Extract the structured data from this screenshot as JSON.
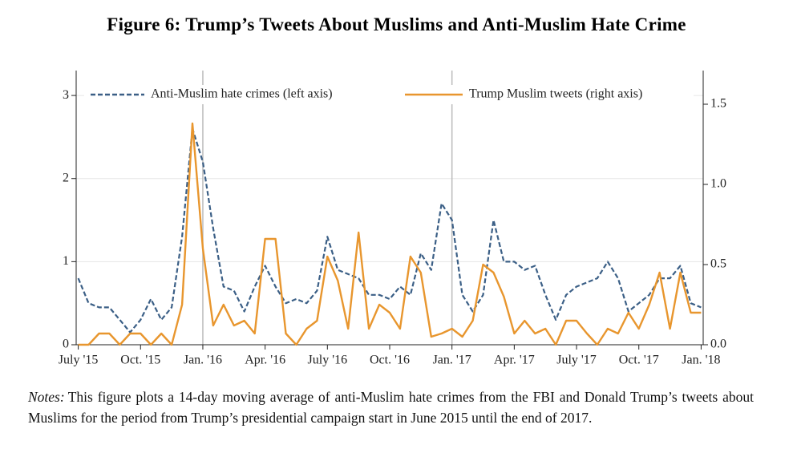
{
  "title": "Figure 6: Trump’s Tweets About Muslims and Anti-Muslim Hate Crime",
  "chart_data": {
    "type": "line",
    "x": [
      0,
      0.5,
      1,
      1.5,
      2,
      2.5,
      3,
      3.5,
      4,
      4.5,
      5,
      5.5,
      6,
      6.5,
      7,
      7.5,
      8,
      8.5,
      9,
      9.5,
      10,
      10.5,
      11,
      11.5,
      12,
      12.5,
      13,
      13.5,
      14,
      14.5,
      15,
      15.5,
      16,
      16.5,
      17,
      17.5,
      18,
      18.5,
      19,
      19.5,
      20,
      20.5,
      21,
      21.5,
      22,
      22.5,
      23,
      23.5,
      24,
      24.5,
      25,
      25.5,
      26,
      26.5,
      27,
      27.5,
      28,
      28.5,
      29,
      29.5,
      30
    ],
    "series": [
      {
        "name": "Anti-Muslim hate crimes (left axis)",
        "color": "#3b5f86",
        "dash": true,
        "values": [
          0.8,
          0.5,
          0.45,
          0.45,
          0.3,
          0.15,
          0.3,
          0.55,
          0.3,
          0.45,
          1.3,
          2.6,
          2.2,
          1.4,
          0.7,
          0.65,
          0.4,
          0.7,
          0.95,
          0.7,
          0.5,
          0.55,
          0.5,
          0.65,
          1.3,
          0.9,
          0.85,
          0.8,
          0.6,
          0.6,
          0.55,
          0.7,
          0.6,
          1.1,
          0.9,
          1.7,
          1.5,
          0.6,
          0.4,
          0.6,
          1.5,
          1.0,
          1.0,
          0.9,
          0.95,
          0.6,
          0.3,
          0.6,
          0.7,
          0.75,
          0.8,
          1.0,
          0.8,
          0.4,
          0.5,
          0.6,
          0.8,
          0.8,
          0.95,
          0.5,
          0.45
        ]
      },
      {
        "name": "Trump Muslim tweets (right axis)",
        "color": "#e8962e",
        "dash": false,
        "axis": "y2",
        "values": [
          0,
          0,
          0.07,
          0.07,
          0,
          0.07,
          0.07,
          0,
          0.07,
          0,
          0.25,
          1.38,
          0.6,
          0.12,
          0.25,
          0.12,
          0.15,
          0.07,
          0.66,
          0.66,
          0.07,
          0,
          0.1,
          0.15,
          0.55,
          0.4,
          0.1,
          0.7,
          0.1,
          0.25,
          0.2,
          0.1,
          0.55,
          0.45,
          0.05,
          0.07,
          0.1,
          0.05,
          0.15,
          0.5,
          0.45,
          0.3,
          0.07,
          0.15,
          0.07,
          0.1,
          0,
          0.15,
          0.15,
          0.07,
          0,
          0.1,
          0.07,
          0.2,
          0.1,
          0.25,
          0.45,
          0.1,
          0.45,
          0.2,
          0.2
        ]
      }
    ],
    "xlim": [
      -0.1,
      30.1
    ],
    "xticks": [
      {
        "value": 0,
        "label": "July '15"
      },
      {
        "value": 3,
        "label": "Oct. '15"
      },
      {
        "value": 6,
        "label": "Jan. '16"
      },
      {
        "value": 9,
        "label": "Apr. '16"
      },
      {
        "value": 12,
        "label": "July '16"
      },
      {
        "value": 15,
        "label": "Oct. '16"
      },
      {
        "value": 18,
        "label": "Jan. '17"
      },
      {
        "value": 21,
        "label": "Apr. '17"
      },
      {
        "value": 24,
        "label": "July '17"
      },
      {
        "value": 27,
        "label": "Oct. '17"
      },
      {
        "value": 30,
        "label": "Jan. '18"
      }
    ],
    "ylim": [
      0,
      3.3
    ],
    "yticks": [
      0,
      1,
      2,
      3
    ],
    "y2lim": [
      0,
      1.71
    ],
    "y2ticks": [
      {
        "value": 0,
        "label": "0.0"
      },
      {
        "value": 0.5,
        "label": "0.5"
      },
      {
        "value": 1,
        "label": "1.0"
      },
      {
        "value": 1.5,
        "label": "1.5"
      }
    ],
    "vlines": [
      6,
      18
    ],
    "grid": true,
    "legend": "top"
  },
  "notes_label": "Notes:",
  "notes": "This figure plots a 14-day moving average of anti-Muslim hate crimes from the FBI and Donald Trump’s tweets about Muslims for the period from Trump’s presidential campaign start in June 2015 until the end of 2017."
}
